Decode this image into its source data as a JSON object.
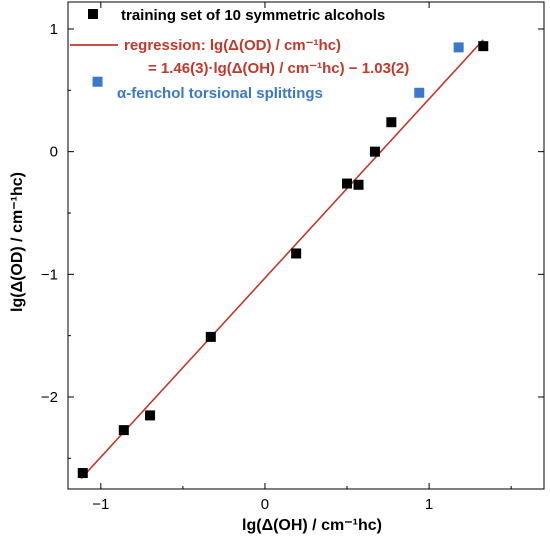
{
  "chart_data": {
    "type": "scatter",
    "xlabel": "lg(Δ(OH) / cm⁻¹hc)",
    "ylabel": "lg(Δ(OD) / cm⁻¹hc)",
    "xlim": [
      -1.2,
      1.7
    ],
    "ylim": [
      -2.75,
      1.22
    ],
    "x_ticks": [
      -1,
      0,
      1
    ],
    "y_ticks": [
      -2,
      -1,
      0,
      1
    ],
    "x_tick_labels": [
      "−1",
      "0",
      "1"
    ],
    "y_tick_labels": [
      "−2",
      "−1",
      "0",
      "1"
    ],
    "grid": false,
    "legend_placement": "top-left",
    "series": [
      {
        "name": "training set of 10 symmetric alcohols",
        "marker": "square",
        "color": "#000000",
        "x": [
          -1.11,
          -0.86,
          -0.7,
          -0.33,
          0.19,
          0.5,
          0.57,
          0.67,
          0.77,
          1.33
        ],
        "y": [
          -2.62,
          -2.27,
          -2.15,
          -1.51,
          -0.83,
          -0.26,
          -0.27,
          0.0,
          0.24,
          0.86
        ]
      },
      {
        "name": "α-fenchol torsional splittings",
        "marker": "square",
        "color": "#3b78c9",
        "x": [
          -1.02,
          0.94,
          1.18
        ],
        "y": [
          0.57,
          0.48,
          0.85
        ]
      }
    ],
    "regression": {
      "label": "regression: lg(Δ(OD) / cm⁻¹hc)",
      "equation": "= 1.46(3)·lg(Δ(OH) / cm⁻¹hc) − 1.03(2)",
      "slope": 1.46,
      "intercept": -1.03,
      "x_range": [
        -1.12,
        1.33
      ],
      "color": "#c0392b"
    }
  }
}
